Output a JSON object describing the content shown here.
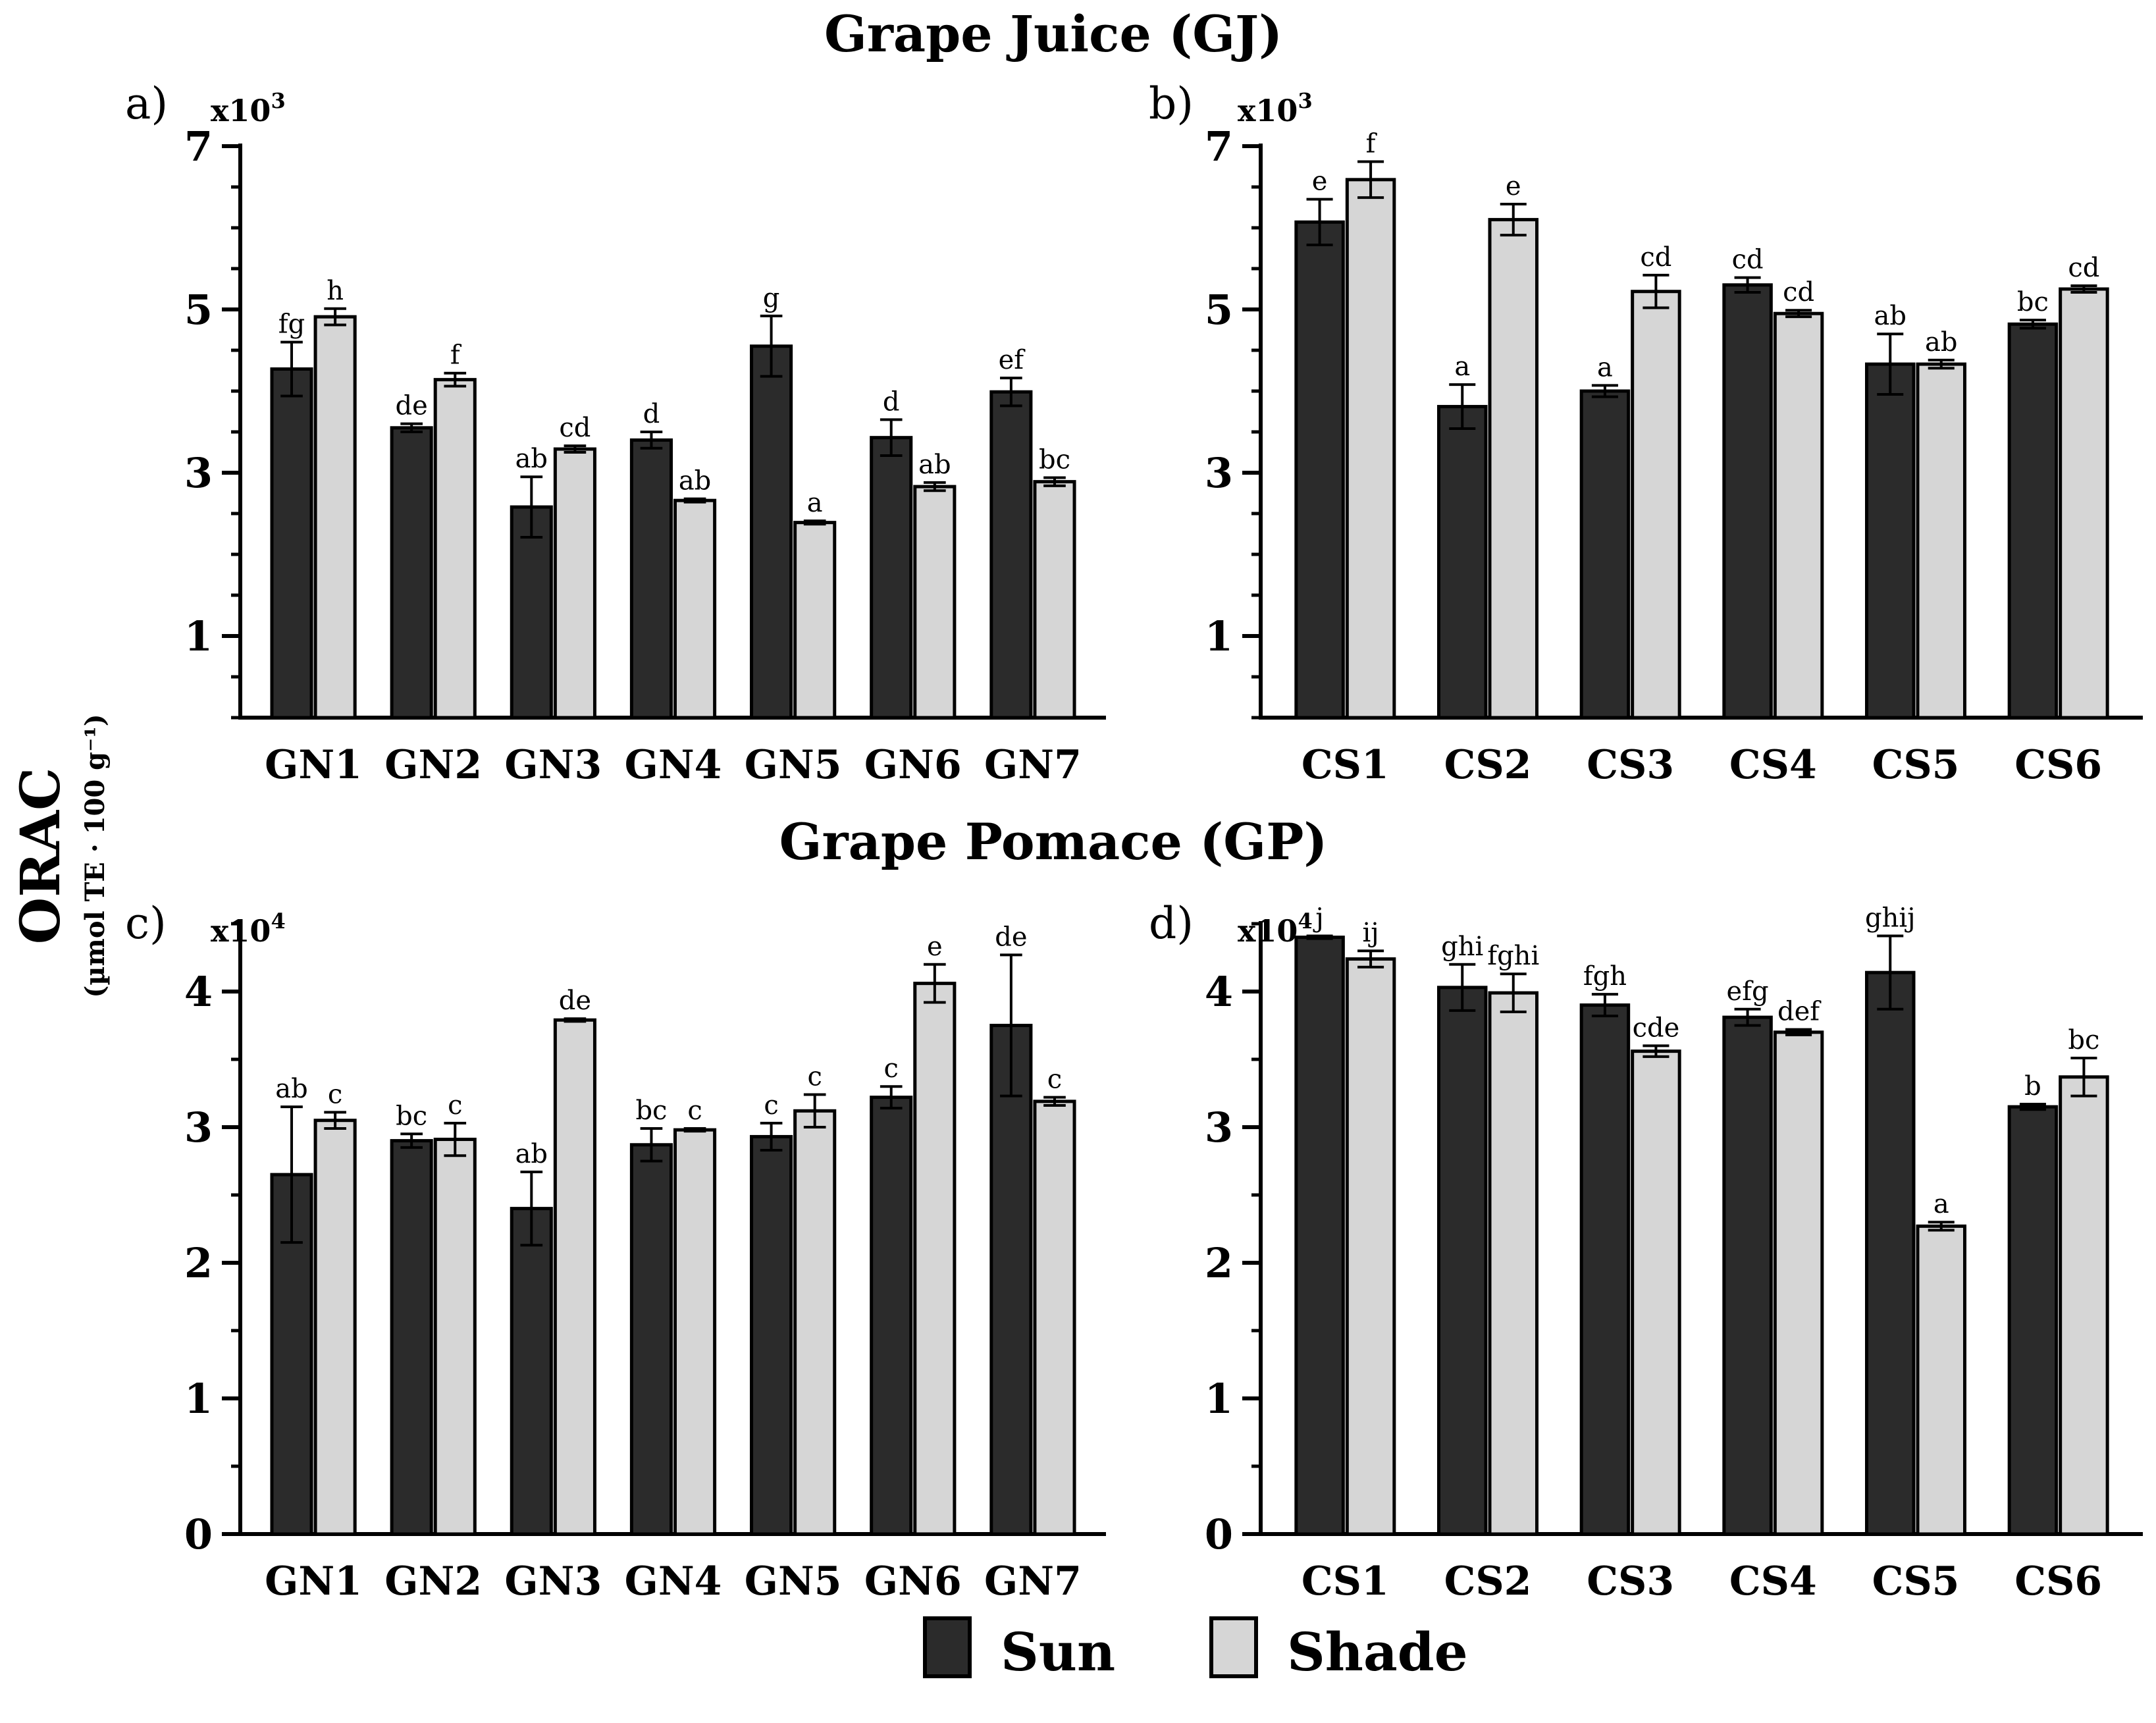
{
  "titles": {
    "juice": "Grape Juice (GJ)",
    "pomace": "Grape Pomace (GP)"
  },
  "y_axis_label": {
    "main": "ORAC",
    "unit": "(µmol TE · 100 g⁻¹)"
  },
  "legend": [
    {
      "name": "Sun",
      "color": "#2b2b2b"
    },
    {
      "name": "Shade",
      "color": "#d6d6d6"
    }
  ],
  "colors": {
    "sun": "#2b2b2b",
    "shade": "#d6d6d6",
    "axis": "#000000"
  },
  "chart_data": [
    {
      "panel": "a)",
      "type": "bar",
      "group": "Grape Juice (GJ)",
      "multiplier_label": "x10",
      "multiplier_exp": "3",
      "ylim": [
        0,
        7
      ],
      "yticks": [
        1,
        3,
        5,
        7
      ],
      "minor_step": 0.5,
      "categories": [
        "GN1",
        "GN2",
        "GN3",
        "GN4",
        "GN5",
        "GN6",
        "GN7"
      ],
      "series": [
        {
          "name": "Sun",
          "values": [
            4.27,
            3.55,
            2.58,
            3.4,
            4.55,
            3.43,
            3.99
          ],
          "errors": [
            0.33,
            0.05,
            0.37,
            0.1,
            0.37,
            0.22,
            0.17
          ],
          "letters": [
            "fg",
            "de",
            "ab",
            "d",
            "g",
            "d",
            "ef"
          ]
        },
        {
          "name": "Shade",
          "values": [
            4.91,
            4.14,
            3.29,
            2.66,
            2.39,
            2.83,
            2.89
          ],
          "errors": [
            0.1,
            0.08,
            0.04,
            0.02,
            0.02,
            0.05,
            0.05
          ],
          "letters": [
            "h",
            "f",
            "cd",
            "ab",
            "a",
            "ab",
            "bc"
          ]
        }
      ]
    },
    {
      "panel": "b)",
      "type": "bar",
      "group": "Grape Juice (GJ)",
      "multiplier_label": "x10",
      "multiplier_exp": "3",
      "ylim": [
        0,
        7
      ],
      "yticks": [
        1,
        3,
        5,
        7
      ],
      "minor_step": 0.5,
      "categories": [
        "CS1",
        "CS2",
        "CS3",
        "CS4",
        "CS5",
        "CS6"
      ],
      "series": [
        {
          "name": "Sun",
          "values": [
            6.07,
            3.81,
            4.0,
            5.3,
            4.33,
            4.82
          ],
          "errors": [
            0.28,
            0.27,
            0.07,
            0.09,
            0.37,
            0.05
          ],
          "letters": [
            "e",
            "a",
            "a",
            "cd",
            "ab",
            "bc"
          ]
        },
        {
          "name": "Shade",
          "values": [
            6.59,
            6.1,
            5.22,
            4.95,
            4.33,
            5.25
          ],
          "errors": [
            0.22,
            0.19,
            0.2,
            0.04,
            0.05,
            0.04
          ],
          "letters": [
            "f",
            "e",
            "cd",
            "cd",
            "ab",
            "cd"
          ]
        }
      ]
    },
    {
      "panel": "c)",
      "type": "bar",
      "group": "Grape Pomace (GP)",
      "multiplier_label": "x10",
      "multiplier_exp": "4",
      "ylim": [
        0,
        4.5
      ],
      "yticks": [
        0,
        1,
        2,
        3,
        4
      ],
      "minor_step": 0.5,
      "categories": [
        "GN1",
        "GN2",
        "GN3",
        "GN4",
        "GN5",
        "GN6",
        "GN7"
      ],
      "series": [
        {
          "name": "Sun",
          "values": [
            2.65,
            2.9,
            2.4,
            2.87,
            2.93,
            3.22,
            3.75
          ],
          "errors": [
            0.5,
            0.05,
            0.27,
            0.12,
            0.1,
            0.08,
            0.52
          ],
          "letters": [
            "ab",
            "bc",
            "ab",
            "bc",
            "c",
            "c",
            "de"
          ]
        },
        {
          "name": "Shade",
          "values": [
            3.05,
            2.91,
            3.79,
            2.98,
            3.12,
            4.06,
            3.19
          ],
          "errors": [
            0.06,
            0.12,
            0.01,
            0.01,
            0.12,
            0.14,
            0.03
          ],
          "letters": [
            "c",
            "c",
            "de",
            "c",
            "c",
            "e",
            "c"
          ]
        }
      ]
    },
    {
      "panel": "d)",
      "type": "bar",
      "group": "Grape Pomace (GP)",
      "multiplier_label": "x10",
      "multiplier_exp": "4",
      "ylim": [
        0,
        4.5
      ],
      "yticks": [
        0,
        1,
        2,
        3,
        4
      ],
      "minor_step": 0.5,
      "categories": [
        "CS1",
        "CS2",
        "CS3",
        "CS4",
        "CS5",
        "CS6"
      ],
      "series": [
        {
          "name": "Sun",
          "values": [
            4.4,
            4.03,
            3.9,
            3.81,
            4.14,
            3.15
          ],
          "errors": [
            0.01,
            0.17,
            0.08,
            0.06,
            0.27,
            0.02
          ],
          "letters": [
            "j",
            "ghi",
            "fgh",
            "efg",
            "ghij",
            "b"
          ]
        },
        {
          "name": "Shade",
          "values": [
            4.24,
            3.99,
            3.56,
            3.7,
            2.27,
            3.37
          ],
          "errors": [
            0.06,
            0.14,
            0.04,
            0.02,
            0.03,
            0.14
          ],
          "letters": [
            "ij",
            "fghi",
            "cde",
            "def",
            "a",
            "bc"
          ]
        }
      ]
    }
  ]
}
